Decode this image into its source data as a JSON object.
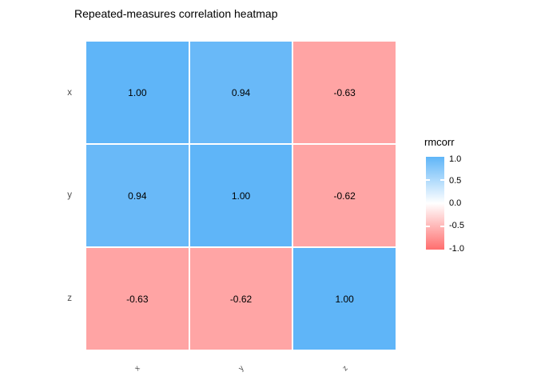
{
  "title": "Repeated-measures correlation heatmap",
  "legend": {
    "title": "rmcorr",
    "ticks": [
      "1.0",
      "0.5",
      "0.0",
      "-0.5",
      "-1.0"
    ],
    "gradient": {
      "high": "#5FB5F8",
      "mid": "#FFFFFF",
      "low": "#FF6E6E"
    }
  },
  "cells": [
    {
      "label": "1.00",
      "color": "#5FB5F8"
    },
    {
      "label": "0.94",
      "color": "#69B9F8"
    },
    {
      "label": "-0.63",
      "color": "#FFA4A4"
    },
    {
      "label": "0.94",
      "color": "#69B9F8"
    },
    {
      "label": "1.00",
      "color": "#5FB5F8"
    },
    {
      "label": "-0.62",
      "color": "#FFA5A5"
    },
    {
      "label": "-0.63",
      "color": "#FFA4A4"
    },
    {
      "label": "-0.62",
      "color": "#FFA5A5"
    },
    {
      "label": "1.00",
      "color": "#5FB5F8"
    }
  ],
  "chart_data": {
    "type": "heatmap",
    "title": "Repeated-measures correlation heatmap",
    "x_categories": [
      "x",
      "y",
      "z"
    ],
    "y_categories": [
      "x",
      "y",
      "z"
    ],
    "values": [
      [
        1.0,
        0.94,
        -0.63
      ],
      [
        0.94,
        1.0,
        -0.62
      ],
      [
        -0.63,
        -0.62,
        1.0
      ]
    ],
    "fill_label": "rmcorr",
    "fill_range": [
      -1.0,
      1.0
    ],
    "legend_position": "right",
    "grid": false,
    "colors": {
      "positive": "#5FB5F8",
      "zero": "#FFFFFF",
      "negative": "#FF6E6E"
    }
  }
}
